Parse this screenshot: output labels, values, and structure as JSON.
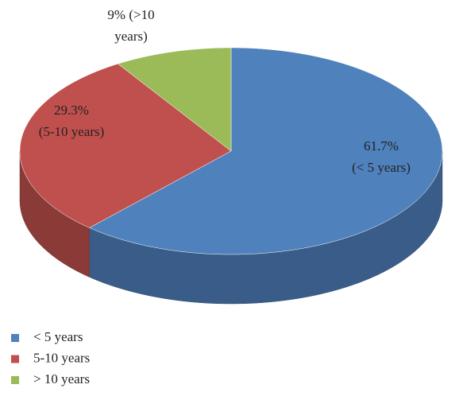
{
  "chart_data": {
    "type": "pie",
    "categories": [
      "< 5 years",
      "5-10 years",
      "> 10 years"
    ],
    "values": [
      61.7,
      29.3,
      9
    ],
    "value_labels": [
      [
        "61.7%",
        "(< 5 years)"
      ],
      [
        "29.3%",
        "(5-10 years)"
      ],
      [
        "9% (>10",
        "years)"
      ]
    ],
    "colors": [
      "#4f81bd",
      "#c0504d",
      "#9bbb59"
    ],
    "legend": "bottom-left"
  }
}
